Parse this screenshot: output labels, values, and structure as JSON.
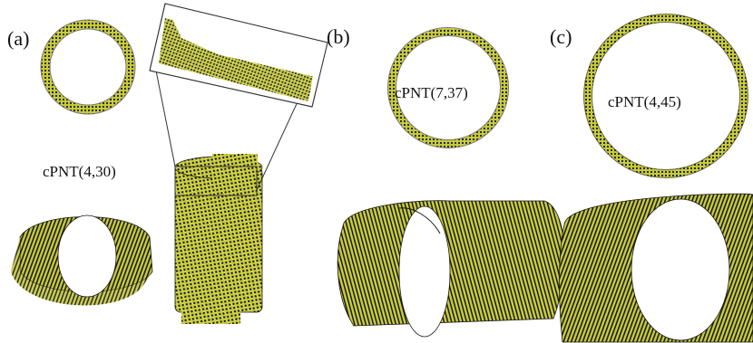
{
  "panels": [
    {
      "label": "(a)",
      "caption": "cPNT(4,30)"
    },
    {
      "label": "(b)",
      "caption": "cPNT(7,37)"
    },
    {
      "label": "(c)",
      "caption": "cPNT(4,45)"
    }
  ],
  "colors": {
    "atom": "#1a1a1a",
    "bond": "#c8cc3c",
    "bond_highlight": "#e6e85a",
    "frame": "#333333"
  }
}
